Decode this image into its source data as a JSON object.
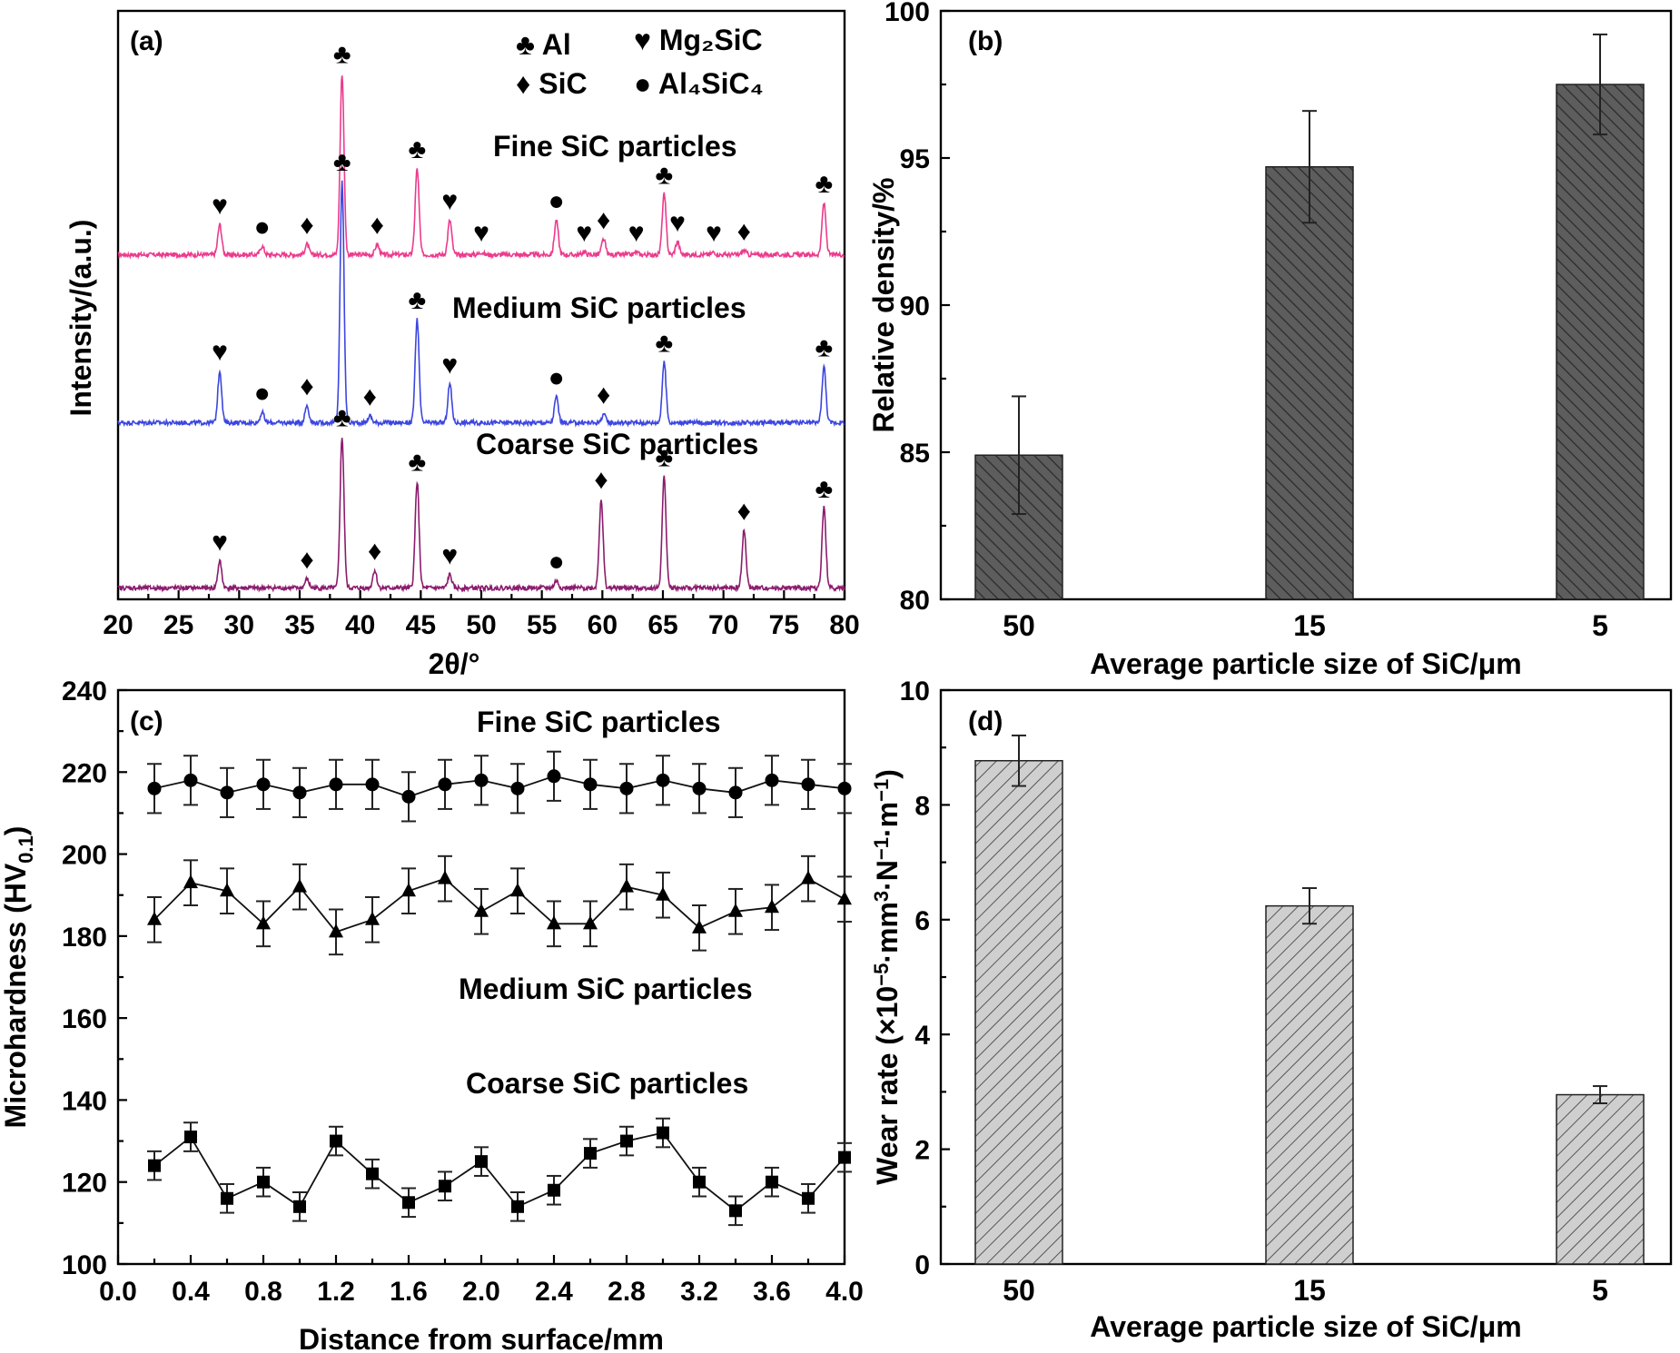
{
  "chart_data": [
    {
      "panel": "(a)",
      "type": "line",
      "xlabel": "2θ/°",
      "ylabel": "Intensity/(a.u.)",
      "xlim": [
        20,
        80
      ],
      "xticks": [
        20,
        25,
        30,
        35,
        40,
        45,
        50,
        55,
        60,
        65,
        70,
        75,
        80
      ],
      "legend": [
        {
          "symbol": "♣",
          "label": "Al"
        },
        {
          "symbol": "♥",
          "label": "Mg₂SiC"
        },
        {
          "symbol": "♦",
          "label": "SiC"
        },
        {
          "symbol": "●",
          "label": "Al₄SiC₄"
        }
      ],
      "series": [
        {
          "name": "Fine SiC particles",
          "color": "#ec3b8d",
          "peaks": [
            {
              "x": 28.4,
              "h": 35,
              "marker": "♥"
            },
            {
              "x": 31.9,
              "h": 10,
              "marker": "●"
            },
            {
              "x": 35.6,
              "h": 12,
              "marker": "♦"
            },
            {
              "x": 38.5,
              "h": 210,
              "marker": "♣"
            },
            {
              "x": 41.4,
              "h": 12,
              "marker": "♦"
            },
            {
              "x": 44.7,
              "h": 100,
              "marker": "♣"
            },
            {
              "x": 47.4,
              "h": 40,
              "marker": "♥"
            },
            {
              "x": 50.0,
              "h": 3,
              "marker": "♥"
            },
            {
              "x": 56.2,
              "h": 40,
              "marker": "●"
            },
            {
              "x": 58.5,
              "h": 3,
              "marker": "♥"
            },
            {
              "x": 60.1,
              "h": 18,
              "marker": "♦"
            },
            {
              "x": 62.8,
              "h": 3,
              "marker": "♥"
            },
            {
              "x": 65.1,
              "h": 70,
              "marker": "♣"
            },
            {
              "x": 66.2,
              "h": 15,
              "marker": "♥"
            },
            {
              "x": 69.2,
              "h": 3,
              "marker": "♥"
            },
            {
              "x": 71.7,
              "h": 5,
              "marker": "♦"
            },
            {
              "x": 78.3,
              "h": 60,
              "marker": "♣"
            }
          ]
        },
        {
          "name": "Medium SiC particles",
          "color": "#3c46e0",
          "peaks": [
            {
              "x": 28.4,
              "h": 60,
              "marker": "♥"
            },
            {
              "x": 31.9,
              "h": 12,
              "marker": "●"
            },
            {
              "x": 35.6,
              "h": 20,
              "marker": "♦"
            },
            {
              "x": 38.5,
              "h": 280,
              "marker": "♣"
            },
            {
              "x": 40.8,
              "h": 8,
              "marker": "♦"
            },
            {
              "x": 44.7,
              "h": 120,
              "marker": "♣"
            },
            {
              "x": 47.4,
              "h": 45,
              "marker": "♥"
            },
            {
              "x": 56.2,
              "h": 30,
              "marker": "●"
            },
            {
              "x": 60.1,
              "h": 10,
              "marker": "♦"
            },
            {
              "x": 65.1,
              "h": 70,
              "marker": "♣"
            },
            {
              "x": 78.3,
              "h": 65,
              "marker": "♣"
            }
          ]
        },
        {
          "name": "Coarse SiC particles",
          "color": "#8b1c6e",
          "peaks": [
            {
              "x": 28.4,
              "h": 30,
              "marker": "♥"
            },
            {
              "x": 35.6,
              "h": 10,
              "marker": "♦"
            },
            {
              "x": 38.5,
              "h": 170,
              "marker": "♣"
            },
            {
              "x": 41.2,
              "h": 20,
              "marker": "♦"
            },
            {
              "x": 44.7,
              "h": 120,
              "marker": "♣"
            },
            {
              "x": 47.4,
              "h": 15,
              "marker": "♥"
            },
            {
              "x": 56.2,
              "h": 8,
              "marker": "●"
            },
            {
              "x": 59.9,
              "h": 100,
              "marker": "♦"
            },
            {
              "x": 65.1,
              "h": 125,
              "marker": "♣"
            },
            {
              "x": 71.7,
              "h": 65,
              "marker": "♦"
            },
            {
              "x": 78.3,
              "h": 90,
              "marker": "♣"
            }
          ]
        }
      ]
    },
    {
      "panel": "(b)",
      "type": "bar",
      "categories": [
        "50",
        "15",
        "5"
      ],
      "values": [
        84.9,
        94.7,
        97.5
      ],
      "errors": [
        2.0,
        1.9,
        1.7
      ],
      "xlabel": "Average particle size of SiC/μm",
      "ylabel": "Relative density/%",
      "ylim": [
        80,
        100
      ],
      "yticks": [
        80,
        85,
        90,
        95,
        100
      ],
      "bar_fill": "#5d5d5d"
    },
    {
      "panel": "(c)",
      "type": "line",
      "xlabel": "Distance from surface/mm",
      "ylabel_main": "Microhardness (HV",
      "ylabel_sub": "0.1",
      "ylabel_end": ")",
      "xlim": [
        0,
        4.0
      ],
      "xticks": [
        "0.0",
        "0.4",
        "0.8",
        "1.2",
        "1.6",
        "2.0",
        "2.4",
        "2.8",
        "3.2",
        "3.6",
        "4.0"
      ],
      "ylim": [
        100,
        240
      ],
      "yticks": [
        100,
        120,
        140,
        160,
        180,
        200,
        220,
        240
      ],
      "x": [
        0.2,
        0.4,
        0.6,
        0.8,
        1.0,
        1.2,
        1.4,
        1.6,
        1.8,
        2.0,
        2.2,
        2.4,
        2.6,
        2.8,
        3.0,
        3.2,
        3.4,
        3.6,
        3.8,
        4.0
      ],
      "series": [
        {
          "name": "Fine SiC particles",
          "marker": "circle",
          "values": [
            216,
            218,
            215,
            217,
            215,
            217,
            217,
            214,
            217,
            218,
            216,
            219,
            217,
            216,
            218,
            216,
            215,
            218,
            217,
            216
          ],
          "error": 6
        },
        {
          "name": "Medium SiC particles",
          "marker": "triangle",
          "values": [
            184,
            193,
            191,
            183,
            192,
            181,
            184,
            191,
            194,
            186,
            191,
            183,
            183,
            192,
            190,
            182,
            186,
            187,
            194,
            189
          ],
          "error": 5.5
        },
        {
          "name": "Coarse SiC particles",
          "marker": "square",
          "values": [
            124,
            131,
            116,
            120,
            114,
            130,
            122,
            115,
            119,
            125,
            114,
            118,
            127,
            130,
            132,
            120,
            113,
            120,
            116,
            126
          ],
          "error": 3.5
        }
      ]
    },
    {
      "panel": "(d)",
      "type": "bar",
      "categories": [
        "50",
        "15",
        "5"
      ],
      "values": [
        8.77,
        6.24,
        2.95
      ],
      "errors": [
        0.44,
        0.31,
        0.15
      ],
      "xlabel": "Average particle size of SiC/μm",
      "ylabel_parts": [
        "Wear rate (×10",
        "−5",
        "·mm",
        "3",
        "·N",
        "−1",
        "·m",
        "−1",
        ")"
      ],
      "ylim": [
        0,
        10
      ],
      "yticks": [
        0,
        2,
        4,
        6,
        8,
        10
      ],
      "bar_fill": "#cfcfcf"
    }
  ]
}
